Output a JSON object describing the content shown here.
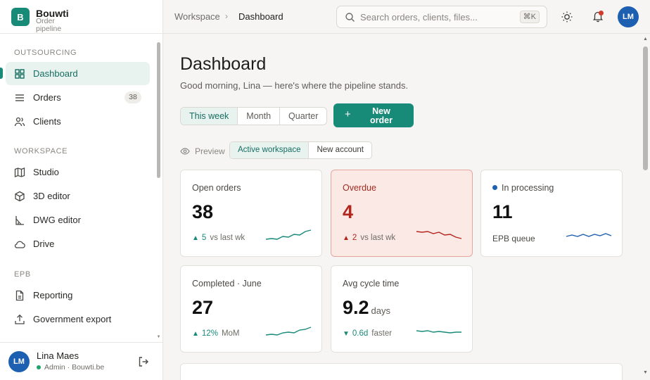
{
  "brand": {
    "letter": "B",
    "name": "Bouwti",
    "subtitle": "Order pipeline"
  },
  "sidebar": {
    "sections": [
      {
        "label": "OUTSOURCING"
      },
      {
        "label": "WORKSPACE"
      },
      {
        "label": "EPB"
      }
    ],
    "items": [
      {
        "label": "Dashboard",
        "icon": "grid-icon",
        "active": true
      },
      {
        "label": "Orders",
        "icon": "list-icon",
        "count": "38"
      },
      {
        "label": "Clients",
        "icon": "users-icon"
      },
      {
        "label": "Studio",
        "icon": "map-icon"
      },
      {
        "label": "3D editor",
        "icon": "cube-icon"
      },
      {
        "label": "DWG editor",
        "icon": "drafting-icon"
      },
      {
        "label": "Drive",
        "icon": "cloud-icon"
      },
      {
        "label": "Reporting",
        "icon": "file-icon"
      },
      {
        "label": "Government export",
        "icon": "upload-icon"
      }
    ]
  },
  "user": {
    "initials": "LM",
    "name": "Lina Maes",
    "role": "Admin · Bouwti.be",
    "status_color": "#1fa36b"
  },
  "topbar": {
    "breadcrumb": [
      "Workspace",
      "Dashboard"
    ],
    "search_placeholder": "Search orders, clients, files...",
    "shortcut": "⌘K",
    "avatar_initials": "LM"
  },
  "page": {
    "title": "Dashboard",
    "greeting": "Good morning, Lina — here's where the pipeline stands.",
    "period_options": [
      "This week",
      "Month",
      "Quarter"
    ],
    "period_selected": "This week",
    "new_order_label": "New order",
    "preview_label": "Preview",
    "preview_options": [
      "Active workspace",
      "New account"
    ],
    "preview_selected": "Active workspace"
  },
  "cards": [
    {
      "title": "Open orders",
      "value": "38",
      "delta": "5",
      "delta_dir": "up",
      "compare": "vs last wk",
      "spark_color": "#178a78"
    },
    {
      "title": "Overdue",
      "value": "4",
      "delta": "2",
      "delta_dir": "up-bad",
      "compare": "vs last wk",
      "spark_color": "#b3261e"
    },
    {
      "title": "In processing",
      "value": "11",
      "footer_label": "EPB queue",
      "spark_color": "#1d5fb0"
    },
    {
      "title": "Completed · June",
      "value": "27",
      "delta": "12%",
      "delta_dir": "up",
      "compare": "MoM",
      "spark_color": "#178a78"
    },
    {
      "title": "Avg cycle time",
      "value": "9.2",
      "unit": "days",
      "delta": "0.6d",
      "delta_dir": "down-good",
      "compare": "faster",
      "spark_color": "#178a78"
    }
  ],
  "colors": {
    "accent": "#178a78",
    "accent_soft": "#e8f3f0",
    "danger": "#b3261e",
    "info": "#1d5fb0"
  }
}
